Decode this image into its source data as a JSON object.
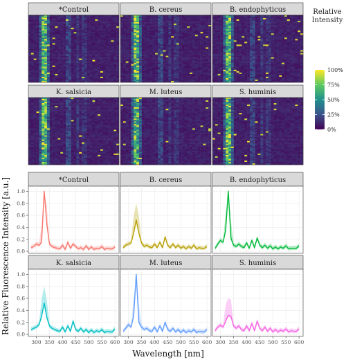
{
  "chart_data": [
    {
      "type": "heatmap",
      "panels": [
        "*Control",
        "B. cereus",
        "B. endophyticus",
        "K. salsicia",
        "M. luteus",
        "S. huminis"
      ],
      "colorscale": "viridis",
      "legend": {
        "title": "Relative Intensity",
        "ticks": [
          "100%",
          "75%",
          "50%",
          "25%",
          "0%"
        ],
        "position": "right"
      }
    },
    {
      "type": "line",
      "panels": [
        {
          "name": "*Control",
          "color": "#F8766D",
          "x": [
            280,
            290,
            300,
            310,
            320,
            330,
            340,
            350,
            360,
            370,
            380,
            390,
            400,
            410,
            420,
            430,
            440,
            450,
            460,
            470,
            480,
            490,
            500,
            510,
            520,
            530,
            540,
            550,
            560,
            570,
            580,
            590,
            600
          ],
          "y": [
            0.06,
            0.08,
            0.12,
            0.1,
            0.15,
            1.0,
            0.45,
            0.12,
            0.08,
            0.06,
            0.05,
            0.04,
            0.1,
            0.03,
            0.15,
            0.05,
            0.12,
            0.08,
            0.04,
            0.06,
            0.03,
            0.09,
            0.03,
            0.07,
            0.03,
            0.05,
            0.04,
            0.08,
            0.03,
            0.05,
            0.04,
            0.04,
            0.07
          ]
        },
        {
          "name": "B. cereus",
          "color": "#B79F00",
          "x": [
            280,
            290,
            300,
            310,
            320,
            330,
            340,
            350,
            360,
            370,
            380,
            390,
            400,
            410,
            420,
            430,
            440,
            450,
            460,
            470,
            480,
            490,
            500,
            510,
            520,
            530,
            540,
            550,
            560,
            570,
            580,
            590,
            600
          ],
          "y": [
            0.06,
            0.1,
            0.12,
            0.14,
            0.3,
            0.52,
            0.3,
            0.14,
            0.08,
            0.1,
            0.07,
            0.06,
            0.12,
            0.06,
            0.15,
            0.06,
            0.24,
            0.1,
            0.06,
            0.12,
            0.06,
            0.1,
            0.05,
            0.08,
            0.04,
            0.08,
            0.05,
            0.1,
            0.04,
            0.06,
            0.05,
            0.05,
            0.08
          ]
        },
        {
          "name": "B. endophyticus",
          "color": "#00BA38",
          "x": [
            280,
            290,
            300,
            310,
            320,
            330,
            340,
            350,
            360,
            370,
            380,
            390,
            400,
            410,
            420,
            430,
            440,
            450,
            460,
            470,
            480,
            490,
            500,
            510,
            520,
            530,
            540,
            550,
            560,
            570,
            580,
            590,
            600
          ],
          "y": [
            0.05,
            0.12,
            0.18,
            0.15,
            0.35,
            1.0,
            0.22,
            0.1,
            0.08,
            0.12,
            0.08,
            0.06,
            0.14,
            0.05,
            0.18,
            0.06,
            0.22,
            0.1,
            0.06,
            0.1,
            0.05,
            0.09,
            0.04,
            0.07,
            0.04,
            0.07,
            0.05,
            0.09,
            0.04,
            0.05,
            0.05,
            0.05,
            0.09
          ]
        },
        {
          "name": "K. salsicia",
          "color": "#00BFC4",
          "x": [
            280,
            290,
            300,
            310,
            320,
            330,
            340,
            350,
            360,
            370,
            380,
            390,
            400,
            410,
            420,
            430,
            440,
            450,
            460,
            470,
            480,
            490,
            500,
            510,
            520,
            530,
            540,
            550,
            560,
            570,
            580,
            590,
            600
          ],
          "y": [
            0.08,
            0.1,
            0.12,
            0.16,
            0.3,
            0.52,
            0.28,
            0.14,
            0.1,
            0.08,
            0.06,
            0.05,
            0.12,
            0.04,
            0.14,
            0.05,
            0.22,
            0.08,
            0.05,
            0.1,
            0.04,
            0.08,
            0.03,
            0.07,
            0.03,
            0.06,
            0.04,
            0.08,
            0.03,
            0.05,
            0.04,
            0.04,
            0.09
          ]
        },
        {
          "name": "M. luteus",
          "color": "#619CFF",
          "x": [
            280,
            290,
            300,
            310,
            320,
            330,
            340,
            350,
            360,
            370,
            380,
            390,
            400,
            410,
            420,
            430,
            440,
            450,
            460,
            470,
            480,
            490,
            500,
            510,
            520,
            530,
            540,
            550,
            560,
            570,
            580,
            590,
            600
          ],
          "y": [
            0.05,
            0.1,
            0.16,
            0.12,
            0.3,
            1.0,
            0.2,
            0.12,
            0.08,
            0.1,
            0.06,
            0.05,
            0.12,
            0.04,
            0.14,
            0.05,
            0.2,
            0.08,
            0.05,
            0.1,
            0.04,
            0.08,
            0.03,
            0.07,
            0.03,
            0.06,
            0.04,
            0.08,
            0.03,
            0.05,
            0.04,
            0.04,
            0.08
          ]
        },
        {
          "name": "S. huminis",
          "color": "#F564E3",
          "x": [
            280,
            290,
            300,
            310,
            320,
            330,
            340,
            350,
            360,
            370,
            380,
            390,
            400,
            410,
            420,
            430,
            440,
            450,
            460,
            470,
            480,
            490,
            500,
            510,
            520,
            530,
            540,
            550,
            560,
            570,
            580,
            590,
            600
          ],
          "y": [
            0.06,
            0.12,
            0.15,
            0.12,
            0.22,
            0.32,
            0.3,
            0.14,
            0.1,
            0.14,
            0.08,
            0.06,
            0.14,
            0.06,
            0.18,
            0.06,
            0.22,
            0.1,
            0.06,
            0.12,
            0.05,
            0.1,
            0.04,
            0.08,
            0.04,
            0.07,
            0.05,
            0.09,
            0.04,
            0.06,
            0.05,
            0.05,
            0.09
          ]
        }
      ],
      "xlabel": "Wavelength [nm]",
      "ylabel": "Relative Fluorescence Intensity [a.u.]",
      "xticks": [
        300,
        350,
        400,
        450,
        500,
        550,
        600
      ],
      "yticks": [
        0.0,
        0.2,
        0.4,
        0.6,
        0.8,
        1.0
      ],
      "xlim": [
        280,
        605
      ],
      "ylim": [
        0,
        1.05
      ],
      "grid": true
    }
  ]
}
